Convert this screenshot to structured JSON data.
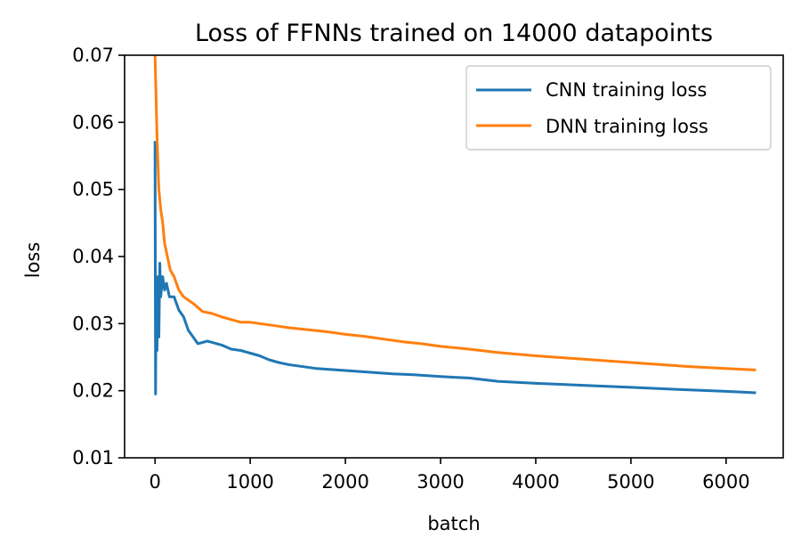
{
  "chart_data": {
    "type": "line",
    "title": "Loss of FFNNs trained on 14000 datapoints",
    "xlabel": "batch",
    "ylabel": "loss",
    "xlim": [
      -320,
      6600
    ],
    "ylim": [
      0.01,
      0.07
    ],
    "x_ticks": [
      0,
      1000,
      2000,
      3000,
      4000,
      5000,
      6000
    ],
    "x_tick_labels": [
      "0",
      "1000",
      "2000",
      "3000",
      "4000",
      "5000",
      "6000"
    ],
    "y_ticks": [
      0.01,
      0.02,
      0.03,
      0.04,
      0.05,
      0.06,
      0.07
    ],
    "y_tick_labels": [
      "0.01",
      "0.02",
      "0.03",
      "0.04",
      "0.05",
      "0.06",
      "0.07"
    ],
    "grid": false,
    "legend_position": "top-right",
    "series": [
      {
        "name": "CNN training loss",
        "color": "#1f77b4",
        "points": [
          [
            0,
            0.057
          ],
          [
            5,
            0.0195
          ],
          [
            10,
            0.034
          ],
          [
            20,
            0.026
          ],
          [
            30,
            0.037
          ],
          [
            40,
            0.028
          ],
          [
            50,
            0.039
          ],
          [
            60,
            0.034
          ],
          [
            80,
            0.037
          ],
          [
            100,
            0.035
          ],
          [
            120,
            0.036
          ],
          [
            150,
            0.034
          ],
          [
            200,
            0.034
          ],
          [
            250,
            0.032
          ],
          [
            300,
            0.031
          ],
          [
            350,
            0.029
          ],
          [
            400,
            0.028
          ],
          [
            450,
            0.027
          ],
          [
            500,
            0.0272
          ],
          [
            550,
            0.0274
          ],
          [
            600,
            0.0272
          ],
          [
            700,
            0.0268
          ],
          [
            800,
            0.0262
          ],
          [
            900,
            0.026
          ],
          [
            1000,
            0.0256
          ],
          [
            1100,
            0.0252
          ],
          [
            1200,
            0.0246
          ],
          [
            1300,
            0.0242
          ],
          [
            1400,
            0.0239
          ],
          [
            1500,
            0.0237
          ],
          [
            1700,
            0.0233
          ],
          [
            1900,
            0.0231
          ],
          [
            2100,
            0.0229
          ],
          [
            2300,
            0.0227
          ],
          [
            2500,
            0.0225
          ],
          [
            2700,
            0.0224
          ],
          [
            3000,
            0.0221
          ],
          [
            3300,
            0.0219
          ],
          [
            3600,
            0.0214
          ],
          [
            4000,
            0.0211
          ],
          [
            4500,
            0.0208
          ],
          [
            5000,
            0.0205
          ],
          [
            5500,
            0.0202
          ],
          [
            6000,
            0.0199
          ],
          [
            6300,
            0.0197
          ]
        ]
      },
      {
        "name": "DNN training loss",
        "color": "#ff7f0e",
        "points": [
          [
            0,
            0.07
          ],
          [
            20,
            0.058
          ],
          [
            40,
            0.05
          ],
          [
            60,
            0.047
          ],
          [
            80,
            0.045
          ],
          [
            100,
            0.042
          ],
          [
            130,
            0.04
          ],
          [
            160,
            0.038
          ],
          [
            200,
            0.037
          ],
          [
            250,
            0.035
          ],
          [
            300,
            0.034
          ],
          [
            400,
            0.033
          ],
          [
            500,
            0.0318
          ],
          [
            600,
            0.0315
          ],
          [
            700,
            0.031
          ],
          [
            800,
            0.0306
          ],
          [
            900,
            0.0302
          ],
          [
            1000,
            0.0302
          ],
          [
            1100,
            0.03
          ],
          [
            1200,
            0.0298
          ],
          [
            1300,
            0.0296
          ],
          [
            1400,
            0.0294
          ],
          [
            1600,
            0.0291
          ],
          [
            1800,
            0.0288
          ],
          [
            2000,
            0.0284
          ],
          [
            2200,
            0.0281
          ],
          [
            2400,
            0.0277
          ],
          [
            2600,
            0.0273
          ],
          [
            2800,
            0.027
          ],
          [
            3000,
            0.0266
          ],
          [
            3300,
            0.0262
          ],
          [
            3600,
            0.0257
          ],
          [
            4000,
            0.0252
          ],
          [
            4400,
            0.0248
          ],
          [
            4800,
            0.0244
          ],
          [
            5200,
            0.024
          ],
          [
            5600,
            0.0236
          ],
          [
            6000,
            0.0233
          ],
          [
            6300,
            0.0231
          ]
        ]
      }
    ]
  }
}
